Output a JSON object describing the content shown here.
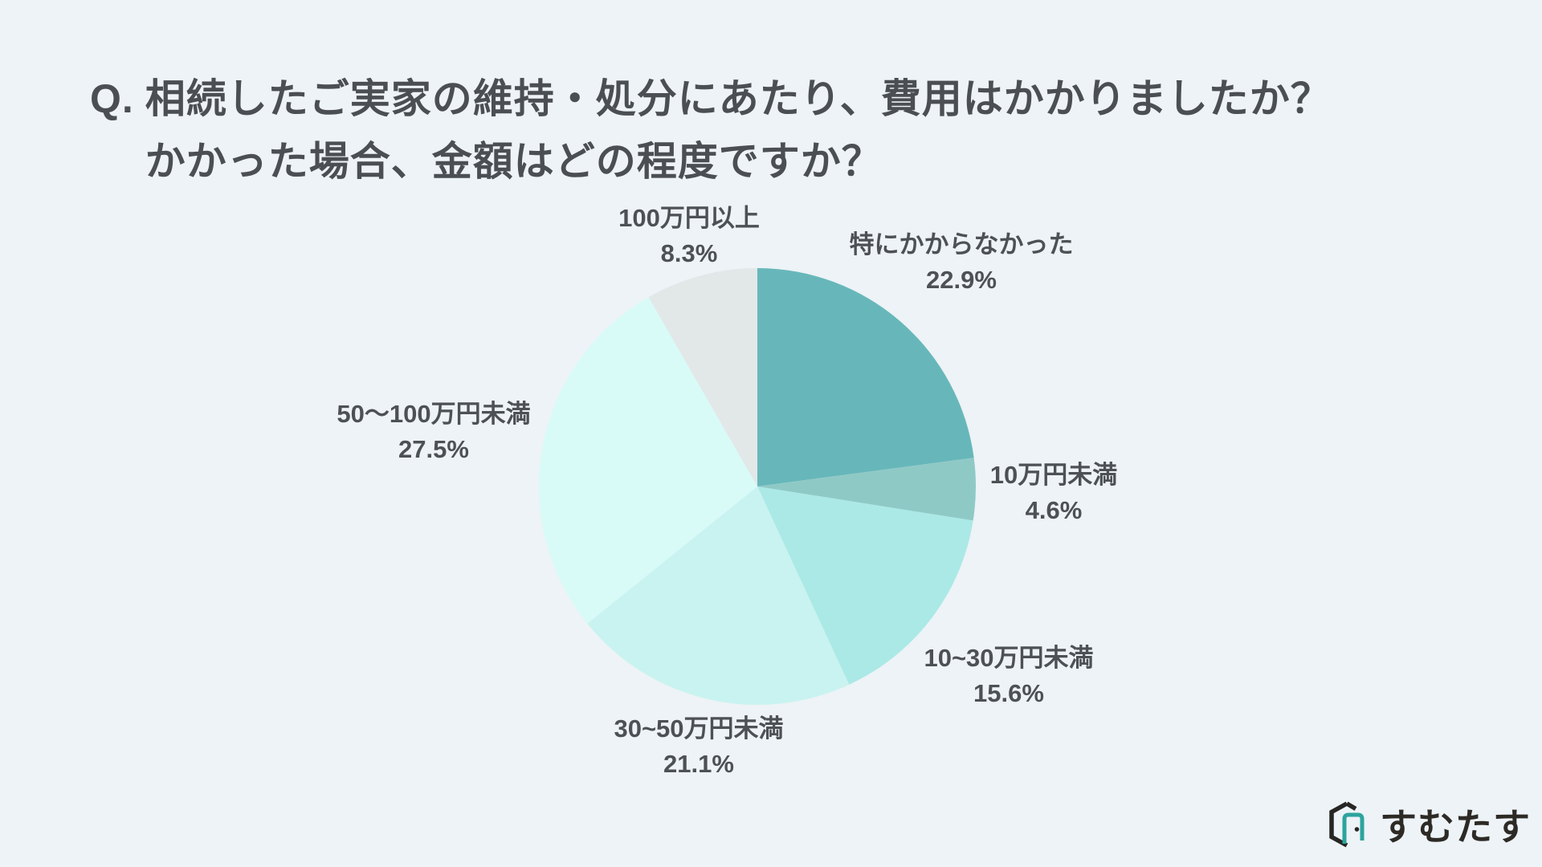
{
  "page": {
    "background_color": "#edf3f6",
    "title_color": "#4b4f54",
    "label_color": "#4d5156"
  },
  "title": {
    "q_prefix": "Q.",
    "line1": "相続したご実家の維持・処分にあたり、費用はかかりましたか？",
    "line2": "かかった場合、金額はどの程度ですか？"
  },
  "chart_data": {
    "type": "pie",
    "direction": "clockwise",
    "start_angle_deg": 0,
    "legend_position": "labels-around-pie",
    "categories": [
      "特にかからなかった",
      "10万円未満",
      "10~30万円未満",
      "30~50万円未満",
      "50〜100万円未満",
      "100万円以上"
    ],
    "values": [
      22.9,
      4.6,
      15.6,
      21.1,
      27.5,
      8.3
    ],
    "slices": [
      {
        "label": "特にかからなかった",
        "value": 22.9,
        "pct_label": "22.9%",
        "color": "#67b7ba"
      },
      {
        "label": "10万円未満",
        "value": 4.6,
        "pct_label": "4.6%",
        "color": "#8fc9c6"
      },
      {
        "label": "10~30万円未満",
        "value": 15.6,
        "pct_label": "15.6%",
        "color": "#abe9e6"
      },
      {
        "label": "30~50万円未満",
        "value": 21.1,
        "pct_label": "21.1%",
        "color": "#c9f3f0"
      },
      {
        "label": "50〜100万円未満",
        "value": 27.5,
        "pct_label": "27.5%",
        "color": "#d8fbf8"
      },
      {
        "label": "100万円以上",
        "value": 8.3,
        "pct_label": "8.3%",
        "color": "#e2e8e8"
      }
    ]
  },
  "logo": {
    "text": "すむたす",
    "text_color": "#2d2a26",
    "icon_dark_color": "#272624",
    "icon_teal_color": "#2ca49e"
  }
}
